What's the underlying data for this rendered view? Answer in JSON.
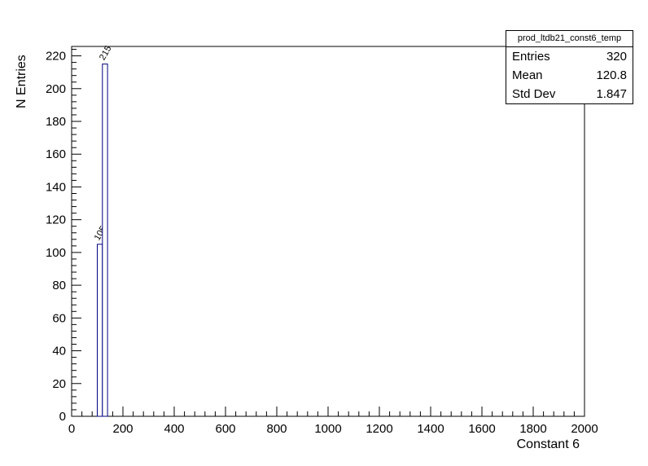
{
  "canvas": {
    "background": "#ffffff"
  },
  "stats_box": {
    "title": "prod_ltdb21_const6_temp",
    "rows": [
      {
        "label": "Entries",
        "value": "320"
      },
      {
        "label": "Mean",
        "value": "120.8"
      },
      {
        "label": "Std Dev",
        "value": "1.847"
      }
    ]
  },
  "chart_data": {
    "type": "bar",
    "title": "prod_ltdb21_const6_temp",
    "xlabel": "Constant 6",
    "ylabel": "N Entries",
    "xlim": [
      0,
      2000
    ],
    "ylim": [
      0,
      225.75
    ],
    "x_major_tick_step": 200,
    "x_minor_tick_step": 40,
    "y_major_tick_step": 20,
    "y_minor_tick_step": 4,
    "x_tick_labels": [
      "0",
      "200",
      "400",
      "600",
      "800",
      "1000",
      "1200",
      "1400",
      "1600",
      "1800",
      "2000"
    ],
    "y_tick_labels": [
      "0",
      "20",
      "40",
      "60",
      "80",
      "100",
      "120",
      "140",
      "160",
      "180",
      "200",
      "220"
    ],
    "grid": false,
    "legend": false,
    "bins": [
      {
        "x_low": 100,
        "x_high": 120,
        "count": 105,
        "label": "105"
      },
      {
        "x_low": 120,
        "x_high": 140,
        "count": 215,
        "label": "215"
      }
    ],
    "entries": 320,
    "mean": 120.8,
    "std_dev": 1.847,
    "bar_fill_color": "#ffffff",
    "bar_outline_color": "#000080",
    "axis_color": "#000000",
    "text_color": "#000000"
  }
}
